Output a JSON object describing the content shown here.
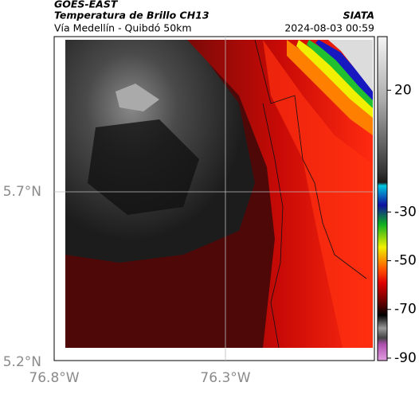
{
  "header": {
    "satellite": "GOES-EAST",
    "product": "Temperatura de Brillo CH13",
    "route": "Vía Medellín - Quibdó 50km",
    "source": "SIATA",
    "timestamp": "2024-08-03 00:59"
  },
  "map": {
    "lat_labels": [
      "5.7°N",
      "5.2°N"
    ],
    "lon_labels": [
      "76.8°W",
      "76.3°W"
    ]
  },
  "colorbar": {
    "lim": [
      -91,
      42
    ],
    "ticks": [
      20,
      -30,
      -50,
      -70,
      -90
    ]
  }
}
